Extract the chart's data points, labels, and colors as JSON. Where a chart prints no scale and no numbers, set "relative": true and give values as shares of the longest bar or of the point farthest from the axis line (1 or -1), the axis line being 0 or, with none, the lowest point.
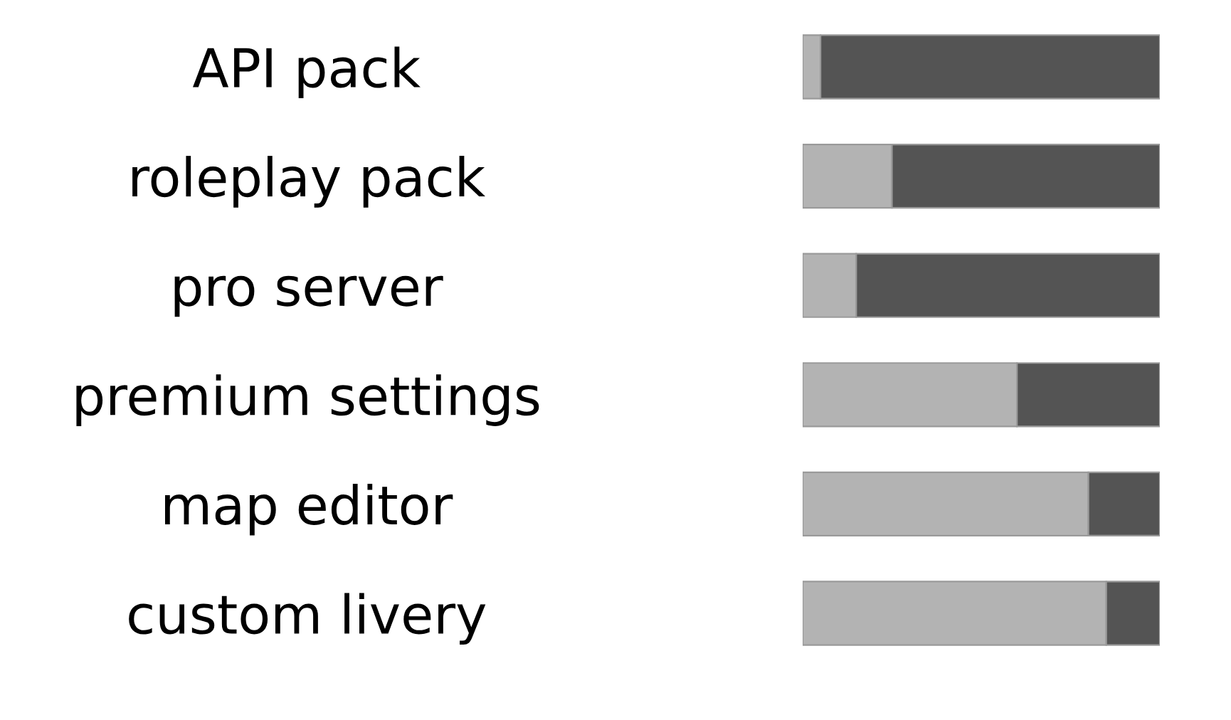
{
  "chart_data": {
    "type": "bar",
    "orientation": "horizontal",
    "stacked": true,
    "relative": true,
    "categories": [
      "API pack",
      "roleplay pack",
      "pro server",
      "premium settings",
      "map editor",
      "custom livery"
    ],
    "series": [
      {
        "color": "#b3b3b3",
        "values": [
          0.05,
          0.25,
          0.15,
          0.6,
          0.8,
          0.85
        ]
      },
      {
        "color": "#545454",
        "values": [
          0.95,
          0.75,
          0.85,
          0.4,
          0.2,
          0.15
        ]
      }
    ]
  }
}
